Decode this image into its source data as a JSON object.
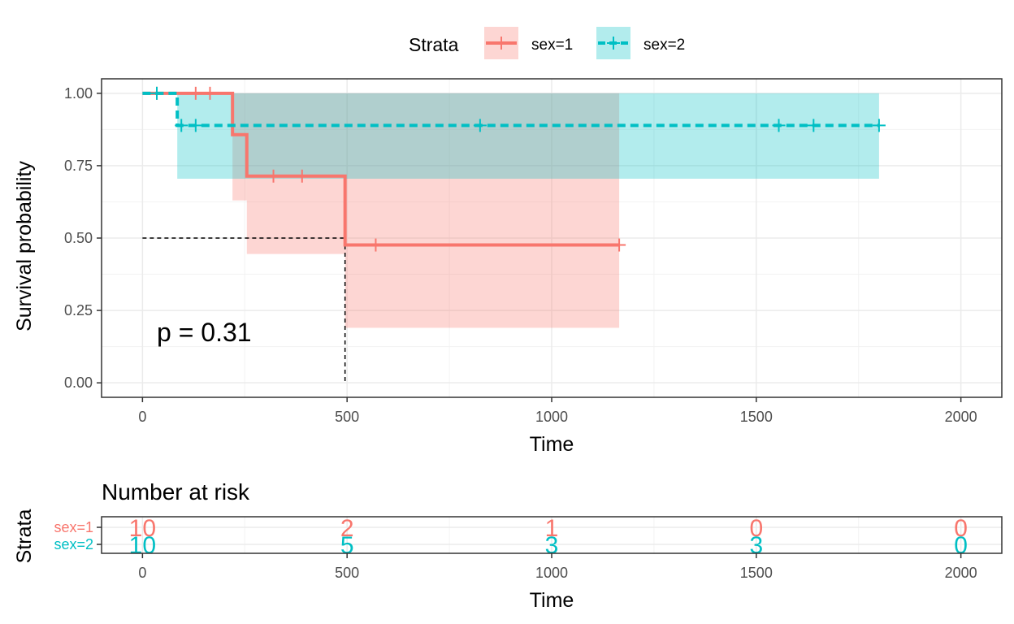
{
  "legend": {
    "title": "Strata",
    "items": [
      {
        "label": "sex=1",
        "color": "#F8766D"
      },
      {
        "label": "sex=2",
        "color": "#00BFC4"
      }
    ]
  },
  "chart_data": [
    {
      "type": "line",
      "subtype": "kaplan-meier",
      "xlabel": "Time",
      "ylabel": "Survival probability",
      "xlim": [
        -100,
        2100
      ],
      "ylim": [
        -0.05,
        1.05
      ],
      "x_ticks": [
        0,
        500,
        1000,
        1500,
        2000
      ],
      "y_ticks": [
        0.0,
        0.25,
        0.5,
        0.75,
        1.0
      ],
      "y_tick_labels": [
        "0.00",
        "0.25",
        "0.50",
        "0.75",
        "1.00"
      ],
      "grid": true,
      "pvalue_label": "p = 0.31",
      "median_line": {
        "y": 0.5,
        "x": 495
      },
      "series": [
        {
          "name": "sex=1",
          "color": "#F8766D",
          "dash": "solid",
          "steps": [
            [
              0,
              1.0
            ],
            [
              220,
              0.857
            ],
            [
              255,
              0.714
            ],
            [
              495,
              0.476
            ],
            [
              1165,
              0.476
            ]
          ],
          "ci": [
            {
              "x0": 220,
              "x1": 255,
              "lo": 0.63,
              "hi": 1.0
            },
            {
              "x0": 255,
              "x1": 495,
              "lo": 0.445,
              "hi": 1.0
            },
            {
              "x0": 495,
              "x1": 1165,
              "lo": 0.19,
              "hi": 1.0
            }
          ],
          "censors": [
            [
              35,
              1.0
            ],
            [
              130,
              1.0
            ],
            [
              165,
              1.0
            ],
            [
              320,
              0.714
            ],
            [
              390,
              0.714
            ],
            [
              570,
              0.476
            ],
            [
              1165,
              0.476
            ]
          ]
        },
        {
          "name": "sex=2",
          "color": "#00BFC4",
          "dash": "dashed",
          "steps": [
            [
              0,
              1.0
            ],
            [
              85,
              0.889
            ],
            [
              1800,
              0.889
            ]
          ],
          "ci": [
            {
              "x0": 85,
              "x1": 1800,
              "lo": 0.705,
              "hi": 1.0
            }
          ],
          "censors": [
            [
              35,
              1.0
            ],
            [
              95,
              0.889
            ],
            [
              130,
              0.889
            ],
            [
              825,
              0.889
            ],
            [
              1555,
              0.889
            ],
            [
              1640,
              0.889
            ],
            [
              1800,
              0.889
            ]
          ]
        }
      ]
    },
    {
      "type": "table",
      "title": "Number at risk",
      "xlabel": "Time",
      "ylabel": "Strata",
      "xlim": [
        -100,
        2100
      ],
      "x_ticks": [
        0,
        500,
        1000,
        1500,
        2000
      ],
      "rows": [
        {
          "name": "sex=1",
          "color": "#F8766D",
          "times": [
            0,
            500,
            1000,
            1500,
            2000
          ],
          "values": [
            10,
            2,
            1,
            0,
            0
          ]
        },
        {
          "name": "sex=2",
          "color": "#00BFC4",
          "times": [
            0,
            500,
            1000,
            1500,
            2000
          ],
          "values": [
            10,
            5,
            3,
            3,
            0
          ]
        }
      ]
    }
  ]
}
